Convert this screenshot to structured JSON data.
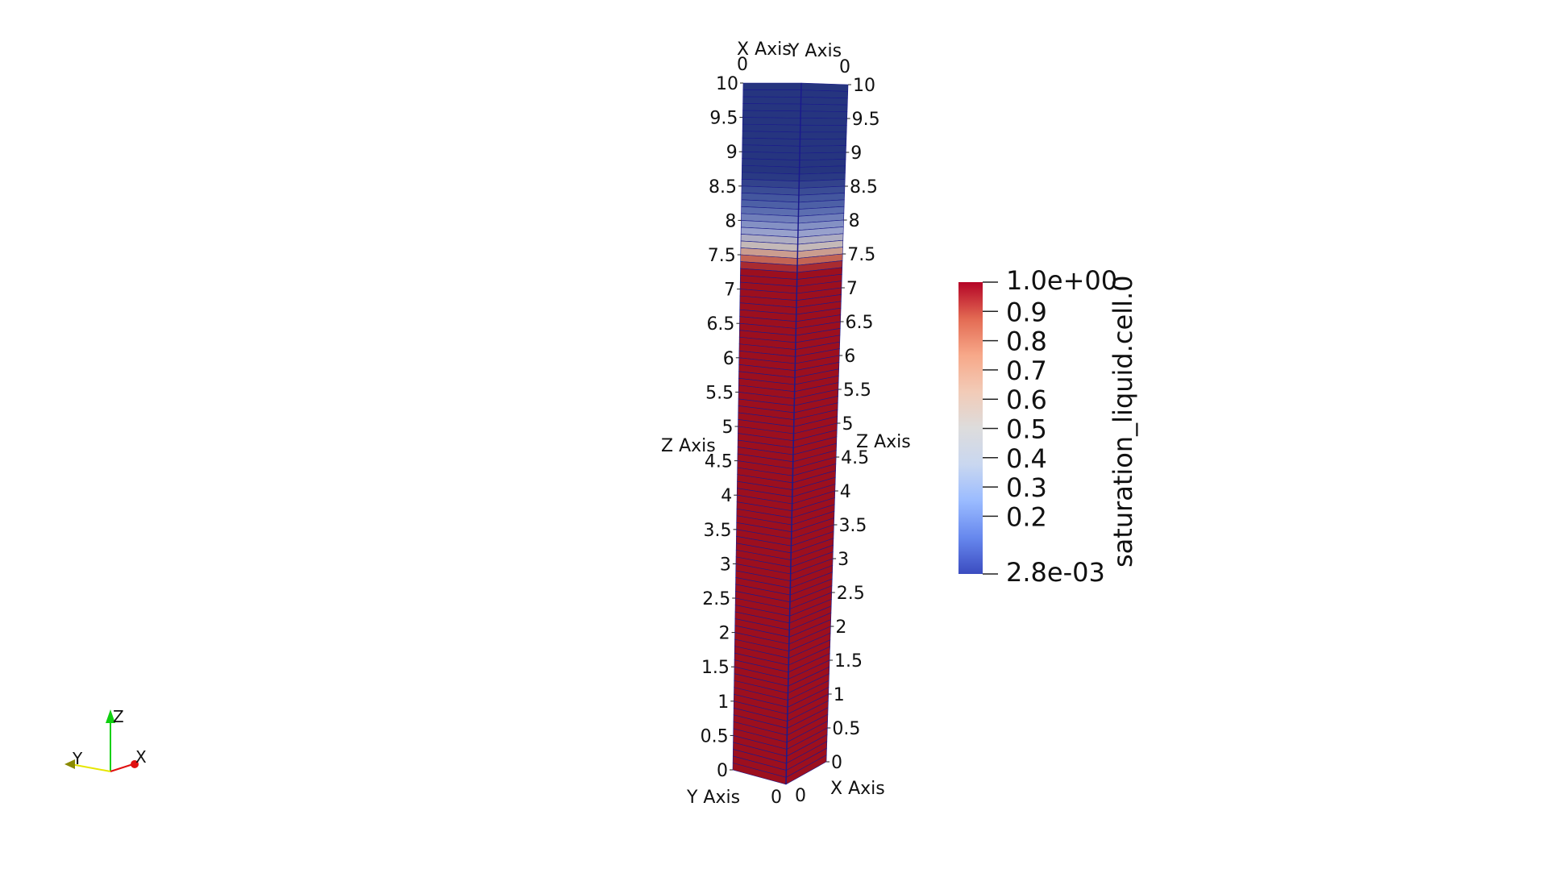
{
  "axes": {
    "x_axis_title": "X Axis",
    "y_axis_title": "Y Axis",
    "z_axis_title": "Z Axis",
    "z_ticks": [
      "10",
      "9.5",
      "9",
      "8.5",
      "8",
      "7.5",
      "7",
      "6.5",
      "6",
      "5.5",
      "5",
      "4.5",
      "4",
      "3.5",
      "3",
      "2.5",
      "2",
      "1.5",
      "1",
      "0.5",
      "0"
    ],
    "top_x_tick": "0",
    "top_y_tick": "0",
    "bottom_y_tick": "0",
    "bottom_x_tick": "0"
  },
  "colorbar": {
    "title": "saturation_liquid.cell.0",
    "max_label": "1.0e+00",
    "min_label": "2.8e-03",
    "tick_labels": [
      "0.9",
      "0.8",
      "0.7",
      "0.6",
      "0.5",
      "0.4",
      "0.3",
      "0.2"
    ],
    "colormap": [
      "#3b4cc0",
      "#6788ee",
      "#9abbff",
      "#c9d7f0",
      "#dddcdc",
      "#f2cbb7",
      "#f7a889",
      "#e36a53",
      "#b40426"
    ]
  },
  "column": {
    "cells": 100,
    "front_transition_z": 7.5,
    "wet_color": "#9c0f1e",
    "dry_color": "#26357f",
    "grid_color": "#1a1a8c"
  },
  "orientation_widget": {
    "x_label": "X",
    "y_label": "Y",
    "z_label": "Z",
    "x_color": "#e01010",
    "y_color": "#e6e600",
    "z_color": "#10d010"
  }
}
